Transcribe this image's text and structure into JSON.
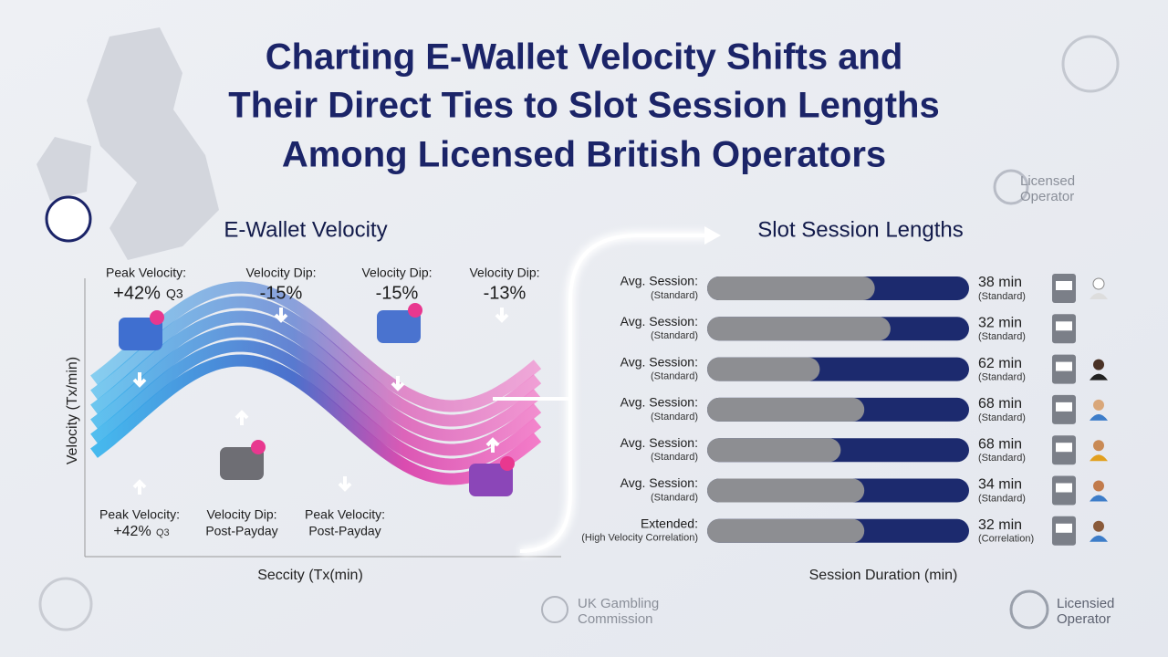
{
  "title": [
    "Charting E-Wallet Velocity Shifts and",
    "Their Direct Ties to Slot Session Lengths",
    "Among Licensed British Operators"
  ],
  "left_panel": {
    "title": "E-Wallet Velocity",
    "y_axis_label": "Velocity (Tx/min)",
    "x_axis_label": "Seccity (Tx(min)",
    "top_callouts": [
      {
        "label": "Peak Velocity:",
        "value": "+42%",
        "note": "Q3"
      },
      {
        "label": "Velocity Dip:",
        "value": "-15%"
      },
      {
        "label": "Velocity Dip:",
        "value": "-15%"
      },
      {
        "label": "Velocity Dip:",
        "value": "-13%"
      }
    ],
    "bottom_callouts": [
      {
        "label": "Peak Velocity:",
        "value": "+42%",
        "note": "Q3"
      },
      {
        "label": "Velocity Dip:",
        "value": "Post-Payday"
      },
      {
        "label": "Peak Velocity:",
        "value": "Post-Payday"
      }
    ]
  },
  "right_panel": {
    "title": "Slot Session Lengths",
    "x_axis_label": "Session Duration (min)",
    "rows": [
      {
        "label": "Avg. Session:",
        "sublabel": "(Standard)",
        "value": "38 min",
        "value_sub": "(Standard)"
      },
      {
        "label": "Avg. Session:",
        "sublabel": "(Standard)",
        "value": "32 min",
        "value_sub": "(Standard)"
      },
      {
        "label": "Avg. Session:",
        "sublabel": "(Standard)",
        "value": "62 min",
        "value_sub": "(Standard)"
      },
      {
        "label": "Avg. Session:",
        "sublabel": "(Standard)",
        "value": "68 min",
        "value_sub": "(Standard)"
      },
      {
        "label": "Avg. Session:",
        "sublabel": "(Standard)",
        "value": "68 min",
        "value_sub": "(Standard)"
      },
      {
        "label": "Avg. Session:",
        "sublabel": "(Standard)",
        "value": "34 min",
        "value_sub": "(Standard)"
      },
      {
        "label": "Extended:",
        "sublabel": "(High Velocity Correlation)",
        "value": "32 min",
        "value_sub": "(Correlation)"
      }
    ]
  },
  "badges": {
    "top_right": [
      "Licensed",
      "Operator"
    ],
    "footer_center": [
      "UK Gambling",
      "Commission"
    ],
    "footer_right": [
      "Licensied",
      "Operator"
    ]
  }
}
